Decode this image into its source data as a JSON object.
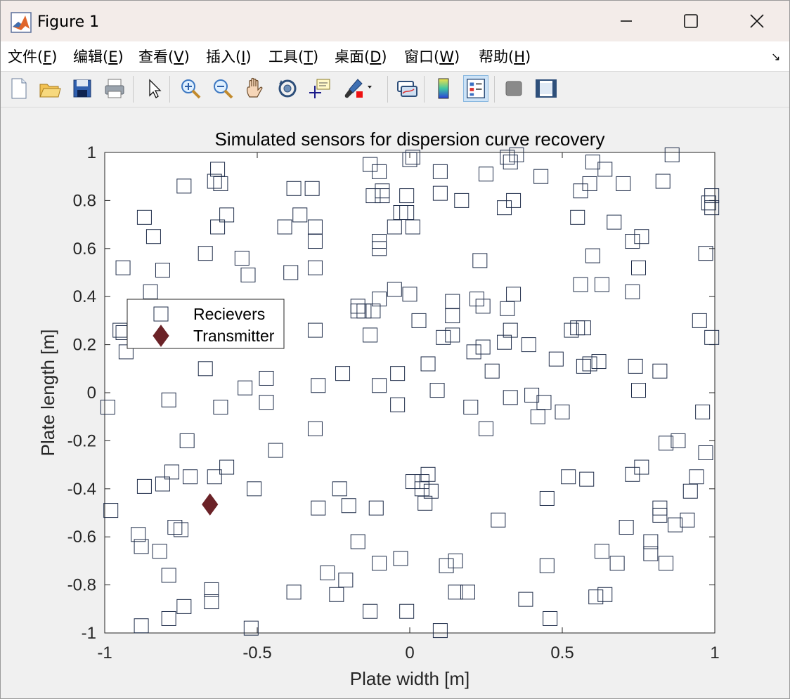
{
  "window": {
    "title": "Figure 1"
  },
  "menu": [
    {
      "name": "menu-file",
      "pre": "文件(",
      "mn": "F",
      "post": ")"
    },
    {
      "name": "menu-edit",
      "pre": "编辑(",
      "mn": "E",
      "post": ")"
    },
    {
      "name": "menu-view",
      "pre": "查看(",
      "mn": "V",
      "post": ")"
    },
    {
      "name": "menu-insert",
      "pre": "插入(",
      "mn": "I",
      "post": ")"
    },
    {
      "name": "menu-tools",
      "pre": "工具(",
      "mn": "T",
      "post": ")"
    },
    {
      "name": "menu-desktop",
      "pre": "桌面(",
      "mn": "D",
      "post": ")"
    },
    {
      "name": "menu-window",
      "pre": "窗口(",
      "mn": "W",
      "post": ")"
    },
    {
      "name": "menu-help",
      "pre": "帮助(",
      "mn": "H",
      "post": ")"
    }
  ],
  "toolbar": {
    "icons": [
      "new-figure-icon",
      "open-file-icon",
      "save-icon",
      "print-icon",
      "pointer-icon",
      "zoom-in-icon",
      "zoom-out-icon",
      "pan-hand-icon",
      "rotate-3d-icon",
      "data-cursor-icon",
      "brush-icon",
      "link-plot-icon",
      "colorbar-icon",
      "legend-icon",
      "hide-plot-tools-icon",
      "show-plot-tools-icon"
    ]
  },
  "chart_data": {
    "type": "scatter",
    "title": "Simulated sensors for dispersion curve recovery",
    "xlabel": "Plate width [m]",
    "ylabel": "Plate length [m]",
    "xlim": [
      -1,
      1
    ],
    "ylim": [
      -1,
      1
    ],
    "xticks": [
      "-1",
      "-0.5",
      "0",
      "0.5",
      "1"
    ],
    "yticks": [
      "1",
      "0.8",
      "0.6",
      "0.4",
      "0.2",
      "0",
      "-0.2",
      "-0.4",
      "-0.6",
      "-0.8",
      "-1"
    ],
    "grid": false,
    "legend_position": "upper-left",
    "colors": {
      "receivers": "#1f2d4a",
      "transmitter": "#6b2227"
    },
    "series": [
      {
        "name": "Recievers",
        "marker": "square",
        "points": [
          [
            -0.63,
            0.93
          ],
          [
            -0.64,
            0.88
          ],
          [
            -0.62,
            0.87
          ],
          [
            -0.74,
            0.86
          ],
          [
            -0.6,
            0.74
          ],
          [
            -0.63,
            0.69
          ],
          [
            -0.87,
            0.73
          ],
          [
            -0.84,
            0.65
          ],
          [
            -0.67,
            0.58
          ],
          [
            -0.94,
            0.52
          ],
          [
            -0.81,
            0.51
          ],
          [
            -0.85,
            0.42
          ],
          [
            -0.55,
            0.56
          ],
          [
            -0.53,
            0.49
          ],
          [
            -0.38,
            0.85
          ],
          [
            -0.32,
            0.85
          ],
          [
            -0.36,
            0.74
          ],
          [
            -0.41,
            0.69
          ],
          [
            -0.31,
            0.69
          ],
          [
            -0.31,
            0.63
          ],
          [
            -0.39,
            0.5
          ],
          [
            -0.31,
            0.52
          ],
          [
            -0.13,
            0.95
          ],
          [
            -0.1,
            0.92
          ],
          [
            -0.12,
            0.82
          ],
          [
            -0.09,
            0.84
          ],
          [
            -0.09,
            0.82
          ],
          [
            -0.1,
            0.63
          ],
          [
            -0.1,
            0.6
          ],
          [
            -0.05,
            0.69
          ],
          [
            -0.03,
            0.75
          ],
          [
            -0.01,
            0.75
          ],
          [
            0.0,
            0.97
          ],
          [
            0.01,
            0.98
          ],
          [
            -0.01,
            0.82
          ],
          [
            0.01,
            0.69
          ],
          [
            0.1,
            0.92
          ],
          [
            0.1,
            0.83
          ],
          [
            0.17,
            0.8
          ],
          [
            0.25,
            0.91
          ],
          [
            0.32,
            0.98
          ],
          [
            0.33,
            0.96
          ],
          [
            0.35,
            0.99
          ],
          [
            0.43,
            0.9
          ],
          [
            0.31,
            0.77
          ],
          [
            0.34,
            0.8
          ],
          [
            0.6,
            0.96
          ],
          [
            0.64,
            0.93
          ],
          [
            0.59,
            0.87
          ],
          [
            0.56,
            0.84
          ],
          [
            0.55,
            0.73
          ],
          [
            0.67,
            0.71
          ],
          [
            0.7,
            0.87
          ],
          [
            0.73,
            0.63
          ],
          [
            0.76,
            0.65
          ],
          [
            0.75,
            0.52
          ],
          [
            0.6,
            0.57
          ],
          [
            0.56,
            0.45
          ],
          [
            0.63,
            0.45
          ],
          [
            0.73,
            0.42
          ],
          [
            0.86,
            0.99
          ],
          [
            0.83,
            0.88
          ],
          [
            0.99,
            0.82
          ],
          [
            0.99,
            0.77
          ],
          [
            0.98,
            0.79
          ],
          [
            0.97,
            0.58
          ],
          [
            0.95,
            0.3
          ],
          [
            0.99,
            0.23
          ],
          [
            -0.95,
            0.26
          ],
          [
            -0.94,
            0.25
          ],
          [
            -0.93,
            0.17
          ],
          [
            -0.31,
            0.26
          ],
          [
            -0.17,
            0.36
          ],
          [
            -0.15,
            0.34
          ],
          [
            -0.12,
            0.34
          ],
          [
            -0.17,
            0.34
          ],
          [
            -0.13,
            0.24
          ],
          [
            -0.1,
            0.39
          ],
          [
            -0.05,
            0.43
          ],
          [
            0.0,
            0.41
          ],
          [
            0.03,
            0.3
          ],
          [
            0.14,
            0.38
          ],
          [
            0.14,
            0.32
          ],
          [
            0.14,
            0.24
          ],
          [
            0.11,
            0.23
          ],
          [
            0.23,
            0.55
          ],
          [
            0.22,
            0.39
          ],
          [
            0.24,
            0.36
          ],
          [
            0.21,
            0.17
          ],
          [
            0.24,
            0.19
          ],
          [
            0.32,
            0.35
          ],
          [
            0.34,
            0.41
          ],
          [
            0.33,
            0.26
          ],
          [
            0.31,
            0.21
          ],
          [
            0.39,
            0.2
          ],
          [
            0.48,
            0.14
          ],
          [
            0.53,
            0.26
          ],
          [
            0.55,
            0.27
          ],
          [
            0.57,
            0.27
          ],
          [
            0.57,
            0.11
          ],
          [
            0.59,
            0.12
          ],
          [
            0.62,
            0.13
          ],
          [
            0.74,
            0.11
          ],
          [
            0.82,
            0.09
          ],
          [
            0.75,
            0.01
          ],
          [
            -0.67,
            0.1
          ],
          [
            -0.62,
            -0.06
          ],
          [
            -0.54,
            0.02
          ],
          [
            -0.47,
            0.06
          ],
          [
            -0.47,
            -0.04
          ],
          [
            -0.3,
            0.03
          ],
          [
            -0.31,
            -0.15
          ],
          [
            -0.22,
            0.08
          ],
          [
            -0.1,
            0.03
          ],
          [
            -0.04,
            0.08
          ],
          [
            -0.04,
            -0.05
          ],
          [
            0.06,
            0.12
          ],
          [
            0.09,
            0.01
          ],
          [
            0.2,
            -0.06
          ],
          [
            0.25,
            -0.15
          ],
          [
            0.27,
            0.09
          ],
          [
            0.33,
            -0.02
          ],
          [
            0.4,
            -0.01
          ],
          [
            0.42,
            -0.1
          ],
          [
            0.44,
            -0.04
          ],
          [
            0.5,
            -0.08
          ],
          [
            -0.99,
            -0.06
          ],
          [
            -0.79,
            -0.03
          ],
          [
            -0.73,
            -0.2
          ],
          [
            -0.44,
            -0.24
          ],
          [
            -0.6,
            -0.31
          ],
          [
            -0.64,
            -0.35
          ],
          [
            -0.72,
            -0.35
          ],
          [
            -0.78,
            -0.33
          ],
          [
            -0.81,
            -0.38
          ],
          [
            -0.87,
            -0.39
          ],
          [
            -0.51,
            -0.4
          ],
          [
            -0.98,
            -0.49
          ],
          [
            -0.23,
            -0.4
          ],
          [
            -0.2,
            -0.47
          ],
          [
            -0.3,
            -0.48
          ],
          [
            -0.11,
            -0.48
          ],
          [
            -0.17,
            -0.62
          ],
          [
            -0.1,
            -0.71
          ],
          [
            -0.03,
            -0.69
          ],
          [
            0.01,
            -0.37
          ],
          [
            0.04,
            -0.37
          ],
          [
            0.06,
            -0.34
          ],
          [
            0.04,
            -0.4
          ],
          [
            0.07,
            -0.41
          ],
          [
            0.05,
            -0.46
          ],
          [
            0.12,
            -0.72
          ],
          [
            0.15,
            -0.7
          ],
          [
            0.15,
            -0.83
          ],
          [
            0.19,
            -0.83
          ],
          [
            0.29,
            -0.53
          ],
          [
            0.38,
            -0.86
          ],
          [
            0.45,
            -0.72
          ],
          [
            0.46,
            -0.94
          ],
          [
            0.45,
            -0.44
          ],
          [
            0.52,
            -0.35
          ],
          [
            0.58,
            -0.36
          ],
          [
            0.63,
            -0.66
          ],
          [
            0.61,
            -0.85
          ],
          [
            0.64,
            -0.84
          ],
          [
            0.68,
            -0.71
          ],
          [
            0.71,
            -0.56
          ],
          [
            0.73,
            -0.34
          ],
          [
            0.76,
            -0.31
          ],
          [
            0.79,
            -0.62
          ],
          [
            0.79,
            -0.67
          ],
          [
            0.82,
            -0.48
          ],
          [
            0.82,
            -0.51
          ],
          [
            0.84,
            -0.71
          ],
          [
            0.84,
            -0.21
          ],
          [
            0.88,
            -0.2
          ],
          [
            0.87,
            -0.55
          ],
          [
            0.91,
            -0.53
          ],
          [
            0.92,
            -0.41
          ],
          [
            0.94,
            -0.35
          ],
          [
            0.97,
            -0.25
          ],
          [
            0.96,
            -0.08
          ],
          [
            -0.89,
            -0.59
          ],
          [
            -0.88,
            -0.64
          ],
          [
            -0.82,
            -0.66
          ],
          [
            -0.77,
            -0.56
          ],
          [
            -0.75,
            -0.57
          ],
          [
            -0.79,
            -0.76
          ],
          [
            -0.74,
            -0.89
          ],
          [
            -0.79,
            -0.94
          ],
          [
            -0.88,
            -0.97
          ],
          [
            -0.65,
            -0.82
          ],
          [
            -0.65,
            -0.87
          ],
          [
            -0.52,
            -0.98
          ],
          [
            -0.38,
            -0.83
          ],
          [
            -0.27,
            -0.75
          ],
          [
            -0.24,
            -0.84
          ],
          [
            -0.21,
            -0.78
          ],
          [
            -0.13,
            -0.91
          ],
          [
            -0.01,
            -0.91
          ],
          [
            0.1,
            -0.99
          ]
        ]
      },
      {
        "name": "Transmitter",
        "marker": "diamond",
        "points": [
          [
            -0.655,
            -0.465
          ]
        ]
      }
    ]
  }
}
